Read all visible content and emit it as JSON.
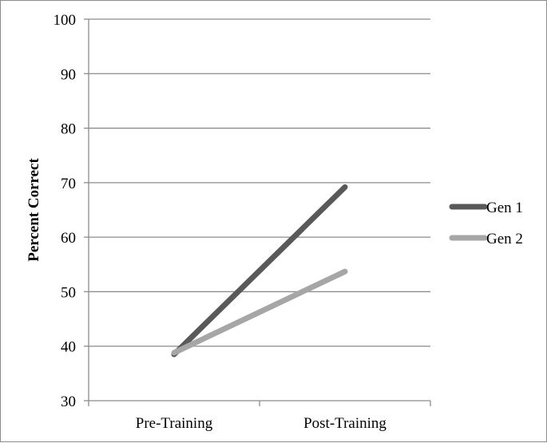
{
  "chart_data": {
    "type": "line",
    "categories": [
      "Pre-Training",
      "Post-Training"
    ],
    "series": [
      {
        "name": "Gen 1",
        "values": [
          38.5,
          69.2
        ],
        "color": "#595959"
      },
      {
        "name": "Gen 2",
        "values": [
          38.8,
          53.7
        ],
        "color": "#a6a6a6"
      }
    ],
    "ylabel": "Percent Correct",
    "xlabel": "",
    "ylim": [
      30,
      100
    ],
    "yticks": [
      30,
      40,
      50,
      60,
      70,
      80,
      90,
      100
    ],
    "grid": true,
    "legend": "right"
  }
}
